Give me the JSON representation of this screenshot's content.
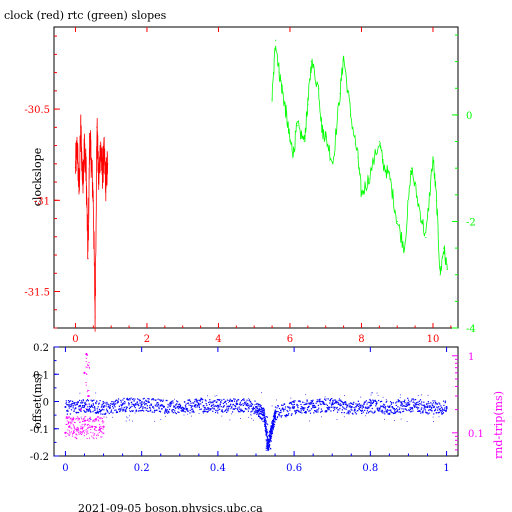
{
  "page": {
    "title": "clock (red) rtc (green) slopes",
    "footer": "2021-09-05 boson.physics.ubc.ca"
  },
  "colors": {
    "clock": "#ff0000",
    "rtc": "#00ff00",
    "offset": "#0000ff",
    "roundtrip": "#ff00ff",
    "axis": "#000000"
  },
  "chart_data": [
    {
      "type": "line",
      "title": "clock (red) rtc (green) slopes",
      "xlabel": "",
      "ylabel": "clockslope",
      "xlim": [
        -0.6,
        10.7
      ],
      "ylim": [
        -31.7,
        -30.05
      ],
      "x_ticks": [
        0,
        2,
        4,
        6,
        8,
        10
      ],
      "y_ticks": [
        -30.5,
        -31,
        -31.5
      ],
      "y_tick_labels": [
        "-30.5",
        "-31",
        "-31.5"
      ],
      "y2lim": [
        -4.0,
        1.65
      ],
      "y2_ticks": [
        0,
        -2,
        -4
      ],
      "series": [
        {
          "axis": "left",
          "color": "#ff0000",
          "x": [
            0.0,
            0.05,
            0.1,
            0.15,
            0.2,
            0.25,
            0.3,
            0.35,
            0.4,
            0.45,
            0.5,
            0.55,
            0.6,
            0.65,
            0.7,
            0.75,
            0.8,
            0.85,
            0.9
          ],
          "y": [
            -30.82,
            -30.7,
            -30.95,
            -30.6,
            -30.9,
            -30.7,
            -30.85,
            -31.32,
            -30.65,
            -30.8,
            -31.0,
            -31.64,
            -30.6,
            -30.9,
            -30.7,
            -30.85,
            -30.75,
            -30.9,
            -30.8
          ]
        },
        {
          "axis": "right",
          "color": "#00ff00",
          "x": [
            5.5,
            5.6,
            5.7,
            5.8,
            5.9,
            6.0,
            6.1,
            6.2,
            6.4,
            6.5,
            6.6,
            6.8,
            6.9,
            7.0,
            7.2,
            7.4,
            7.5,
            7.7,
            7.9,
            8.0,
            8.2,
            8.5,
            8.6,
            8.8,
            9.0,
            9.2,
            9.4,
            9.6,
            9.8,
            10.0,
            10.1,
            10.2,
            10.3,
            10.4
          ],
          "y": [
            0.3,
            1.4,
            0.8,
            0.4,
            0.0,
            -0.5,
            -0.7,
            -0.2,
            -0.5,
            0.2,
            1.0,
            0.5,
            -0.3,
            -0.4,
            -0.9,
            0.4,
            1.1,
            0.0,
            -0.8,
            -1.5,
            -1.2,
            -0.5,
            -0.9,
            -1.2,
            -2.0,
            -2.5,
            -1.0,
            -1.7,
            -2.3,
            -0.8,
            -1.6,
            -3.0,
            -2.5,
            -2.9
          ]
        }
      ]
    },
    {
      "type": "scatter",
      "xlabel": "",
      "ylabel": "offset(ms)",
      "y2label": "rnd-trip(ms)",
      "xlim": [
        -0.03,
        1.03
      ],
      "ylim": [
        -0.2,
        0.2
      ],
      "x_ticks": [
        0,
        0.2,
        0.4,
        0.6,
        0.8,
        1
      ],
      "x_tick_labels": [
        "0",
        "0.2",
        "0.4",
        "0.6",
        "0.8",
        "1"
      ],
      "y_ticks": [
        0.2,
        0.1,
        0,
        -0.1,
        -0.2
      ],
      "y_tick_labels": [
        "0.2",
        "0.1",
        "0",
        "-0.1",
        "-0.2"
      ],
      "y2_scale": "log",
      "y2lim": [
        0.05,
        1.3
      ],
      "y2_ticks": [
        1,
        0.1
      ],
      "y2_tick_labels": [
        "1",
        "0.1"
      ],
      "series": [
        {
          "axis": "left",
          "color": "#0000ff",
          "x": [
            0.0,
            0.05,
            0.1,
            0.15,
            0.2,
            0.25,
            0.3,
            0.35,
            0.4,
            0.45,
            0.5,
            0.52,
            0.53,
            0.54,
            0.55,
            0.6,
            0.65,
            0.7,
            0.75,
            0.8,
            0.85,
            0.9,
            0.95,
            1.0
          ],
          "y": [
            -0.02,
            -0.015,
            -0.02,
            -0.01,
            -0.01,
            -0.015,
            -0.02,
            -0.01,
            -0.015,
            -0.01,
            -0.02,
            -0.05,
            -0.16,
            -0.1,
            -0.04,
            -0.02,
            -0.015,
            -0.01,
            -0.02,
            -0.015,
            -0.02,
            -0.01,
            -0.02,
            -0.02
          ]
        },
        {
          "axis": "right",
          "color": "#ff00ff",
          "x": [
            0.0,
            0.01,
            0.02,
            0.03,
            0.04,
            0.05,
            0.055,
            0.06,
            0.07,
            0.08,
            0.09,
            0.1
          ],
          "y": [
            0.1,
            0.12,
            0.15,
            0.11,
            0.2,
            0.6,
            1.05,
            0.3,
            0.12,
            0.15,
            0.11,
            0.12
          ]
        }
      ]
    }
  ]
}
